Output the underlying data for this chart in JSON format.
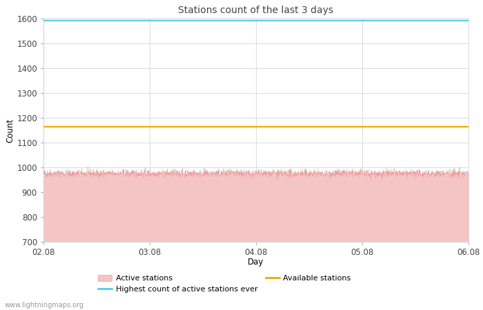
{
  "title": "Stations count of the last 3 days",
  "xlabel": "Day",
  "ylabel": "Count",
  "ylim": [
    700,
    1600
  ],
  "yticks": [
    700,
    800,
    900,
    1000,
    1100,
    1200,
    1300,
    1400,
    1500,
    1600
  ],
  "x_start": 0,
  "x_end": 96,
  "xtick_labels": [
    "02.08",
    "03.08",
    "04.08",
    "05.08",
    "06.08"
  ],
  "xtick_positions": [
    0,
    24,
    48,
    72,
    96
  ],
  "active_stations_mean": 975,
  "active_stations_noise": 8,
  "active_stations_color_fill": "#f5c5c5",
  "active_stations_color_line": "#e8a0a0",
  "highest_ever_value": 1592,
  "highest_ever_color": "#55ccee",
  "available_stations_value": 1163,
  "available_stations_color": "#f0a800",
  "watermark": "www.lightningmaps.org",
  "background_color": "#ffffff",
  "grid_color": "#cccccc",
  "legend_labels": [
    "Active stations",
    "Highest count of active stations ever",
    "Available stations"
  ]
}
